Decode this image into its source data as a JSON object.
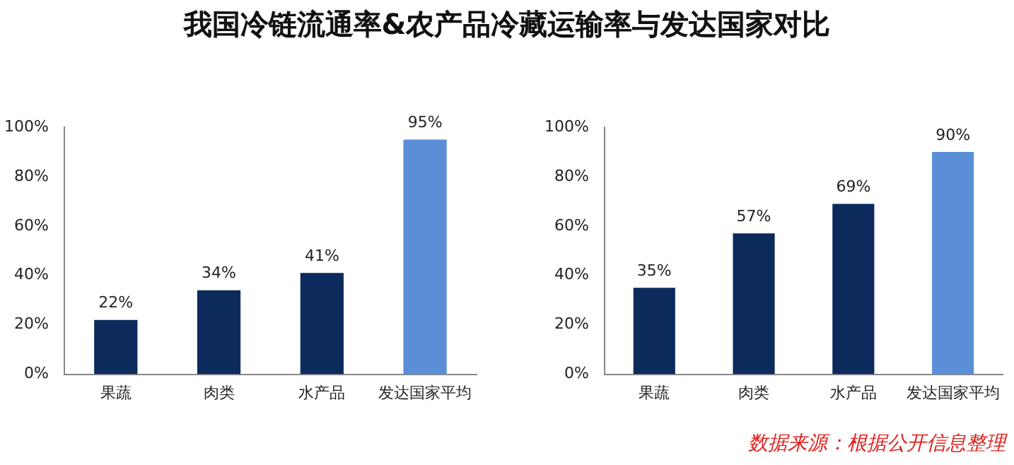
{
  "chart_data": [
    {
      "type": "bar",
      "title": "我国冷链流通率&农产品冷藏运输率与发达国家对比",
      "categories": [
        "果蔬",
        "肉类",
        "水产品",
        "发达国家平均"
      ],
      "values": [
        22,
        34,
        41,
        95
      ],
      "colors": [
        "#0c2a5c",
        "#0c2a5c",
        "#0c2a5c",
        "#5a8fd8"
      ],
      "value_labels": [
        "22%",
        "34%",
        "41%",
        "95%"
      ],
      "ylim": [
        0,
        100
      ],
      "yticks": [
        {
          "value": 0,
          "label": "0%"
        },
        {
          "value": 20,
          "label": "20%"
        },
        {
          "value": 40,
          "label": "40%"
        },
        {
          "value": 60,
          "label": "60%"
        },
        {
          "value": 80,
          "label": "80%"
        },
        {
          "value": 100,
          "label": "100%"
        }
      ],
      "grid": false,
      "legend": false
    },
    {
      "type": "bar",
      "categories": [
        "果蔬",
        "肉类",
        "水产品",
        "发达国家平均"
      ],
      "values": [
        35,
        57,
        69,
        90
      ],
      "colors": [
        "#0c2a5c",
        "#0c2a5c",
        "#0c2a5c",
        "#5a8fd8"
      ],
      "value_labels": [
        "35%",
        "57%",
        "69%",
        "90%"
      ],
      "ylim": [
        0,
        100
      ],
      "yticks": [
        {
          "value": 0,
          "label": "0%"
        },
        {
          "value": 20,
          "label": "20%"
        },
        {
          "value": 40,
          "label": "40%"
        },
        {
          "value": 60,
          "label": "60%"
        },
        {
          "value": 80,
          "label": "80%"
        },
        {
          "value": 100,
          "label": "100%"
        }
      ],
      "grid": false,
      "legend": false,
      "annotations": [
        "数据来源：根据公开信息整理"
      ]
    }
  ]
}
